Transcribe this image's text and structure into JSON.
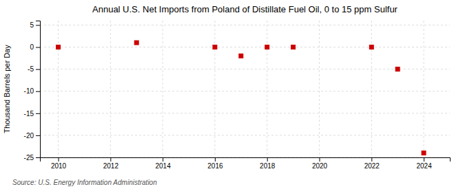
{
  "chart_data": {
    "type": "scatter",
    "title": "Annual U.S. Net Imports from Poland of Distillate Fuel Oil, 0 to 15 ppm Sulfur",
    "ylabel": "Thousand Barrels per Day",
    "annotations": [
      "Source: U.S. Energy Information Administration"
    ],
    "x": [
      2010,
      2013,
      2016,
      2017,
      2018,
      2019,
      2022,
      2023,
      2024
    ],
    "values": [
      0,
      1,
      0,
      -2,
      0,
      0,
      0,
      -5,
      -24
    ],
    "color": "#cc0000",
    "marker": "square",
    "xlim": [
      2009.3,
      2025.0
    ],
    "ylim": [
      -25,
      6
    ],
    "xticks": [
      2010,
      2012,
      2014,
      2016,
      2018,
      2020,
      2022,
      2024
    ],
    "yticks": [
      5,
      0,
      -5,
      -10,
      -15,
      -20,
      -25
    ],
    "grid": true
  }
}
